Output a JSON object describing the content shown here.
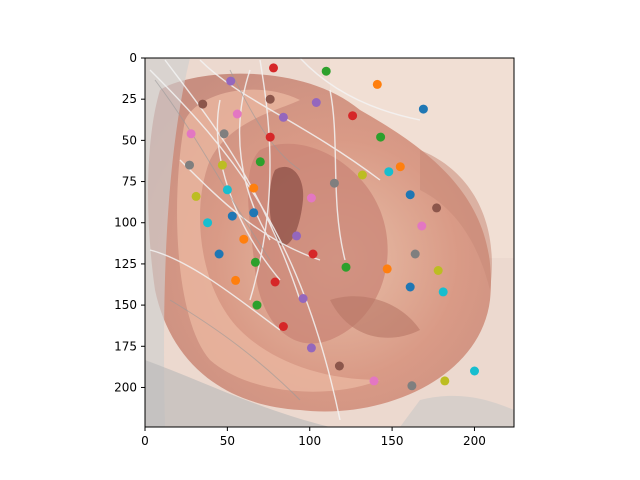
{
  "chart_data": {
    "type": "scatter",
    "title": "",
    "xlabel": "",
    "ylabel": "",
    "xlim": [
      0,
      224
    ],
    "ylim": [
      224,
      0
    ],
    "y_inverted": true,
    "grid": false,
    "background": "image of a human ear (close-up, pink skin with white/grey hair)",
    "x_ticks": [
      0,
      50,
      100,
      150,
      200
    ],
    "y_ticks": [
      0,
      25,
      50,
      75,
      100,
      125,
      150,
      175,
      200
    ],
    "palette": [
      "#1f77b4",
      "#ff7f0e",
      "#2ca02c",
      "#d62728",
      "#9467bd",
      "#8c564b",
      "#e377c2",
      "#7f7f7f",
      "#bcbd22",
      "#17becf"
    ],
    "points": [
      {
        "x": 78,
        "y": 6,
        "c": "#d62728"
      },
      {
        "x": 110,
        "y": 8,
        "c": "#2ca02c"
      },
      {
        "x": 52,
        "y": 14,
        "c": "#9467bd"
      },
      {
        "x": 141,
        "y": 16,
        "c": "#ff7f0e"
      },
      {
        "x": 35,
        "y": 28,
        "c": "#8c564b"
      },
      {
        "x": 76,
        "y": 25,
        "c": "#8c564b"
      },
      {
        "x": 104,
        "y": 27,
        "c": "#9467bd"
      },
      {
        "x": 169,
        "y": 31,
        "c": "#1f77b4"
      },
      {
        "x": 56,
        "y": 34,
        "c": "#e377c2"
      },
      {
        "x": 84,
        "y": 36,
        "c": "#9467bd"
      },
      {
        "x": 126,
        "y": 35,
        "c": "#d62728"
      },
      {
        "x": 28,
        "y": 46,
        "c": "#e377c2"
      },
      {
        "x": 48,
        "y": 46,
        "c": "#7f7f7f"
      },
      {
        "x": 76,
        "y": 48,
        "c": "#d62728"
      },
      {
        "x": 143,
        "y": 48,
        "c": "#2ca02c"
      },
      {
        "x": 27,
        "y": 65,
        "c": "#7f7f7f"
      },
      {
        "x": 47,
        "y": 65,
        "c": "#bcbd22"
      },
      {
        "x": 70,
        "y": 63,
        "c": "#2ca02c"
      },
      {
        "x": 155,
        "y": 66,
        "c": "#ff7f0e"
      },
      {
        "x": 132,
        "y": 71,
        "c": "#bcbd22"
      },
      {
        "x": 148,
        "y": 69,
        "c": "#17becf"
      },
      {
        "x": 115,
        "y": 76,
        "c": "#7f7f7f"
      },
      {
        "x": 66,
        "y": 79,
        "c": "#ff7f0e"
      },
      {
        "x": 50,
        "y": 80,
        "c": "#17becf"
      },
      {
        "x": 31,
        "y": 84,
        "c": "#bcbd22"
      },
      {
        "x": 101,
        "y": 85,
        "c": "#e377c2"
      },
      {
        "x": 161,
        "y": 83,
        "c": "#1f77b4"
      },
      {
        "x": 177,
        "y": 91,
        "c": "#8c564b"
      },
      {
        "x": 53,
        "y": 96,
        "c": "#1f77b4"
      },
      {
        "x": 66,
        "y": 94,
        "c": "#1f77b4"
      },
      {
        "x": 38,
        "y": 100,
        "c": "#17becf"
      },
      {
        "x": 168,
        "y": 102,
        "c": "#e377c2"
      },
      {
        "x": 92,
        "y": 108,
        "c": "#9467bd"
      },
      {
        "x": 60,
        "y": 110,
        "c": "#ff7f0e"
      },
      {
        "x": 45,
        "y": 119,
        "c": "#1f77b4"
      },
      {
        "x": 102,
        "y": 119,
        "c": "#d62728"
      },
      {
        "x": 164,
        "y": 119,
        "c": "#7f7f7f"
      },
      {
        "x": 67,
        "y": 124,
        "c": "#2ca02c"
      },
      {
        "x": 122,
        "y": 127,
        "c": "#2ca02c"
      },
      {
        "x": 147,
        "y": 128,
        "c": "#ff7f0e"
      },
      {
        "x": 178,
        "y": 129,
        "c": "#bcbd22"
      },
      {
        "x": 55,
        "y": 135,
        "c": "#ff7f0e"
      },
      {
        "x": 79,
        "y": 136,
        "c": "#d62728"
      },
      {
        "x": 161,
        "y": 139,
        "c": "#1f77b4"
      },
      {
        "x": 181,
        "y": 142,
        "c": "#17becf"
      },
      {
        "x": 96,
        "y": 146,
        "c": "#9467bd"
      },
      {
        "x": 68,
        "y": 150,
        "c": "#2ca02c"
      },
      {
        "x": 84,
        "y": 163,
        "c": "#d62728"
      },
      {
        "x": 101,
        "y": 176,
        "c": "#9467bd"
      },
      {
        "x": 118,
        "y": 187,
        "c": "#8c564b"
      },
      {
        "x": 139,
        "y": 196,
        "c": "#e377c2"
      },
      {
        "x": 162,
        "y": 199,
        "c": "#7f7f7f"
      },
      {
        "x": 182,
        "y": 196,
        "c": "#bcbd22"
      },
      {
        "x": 200,
        "y": 190,
        "c": "#17becf"
      }
    ]
  }
}
